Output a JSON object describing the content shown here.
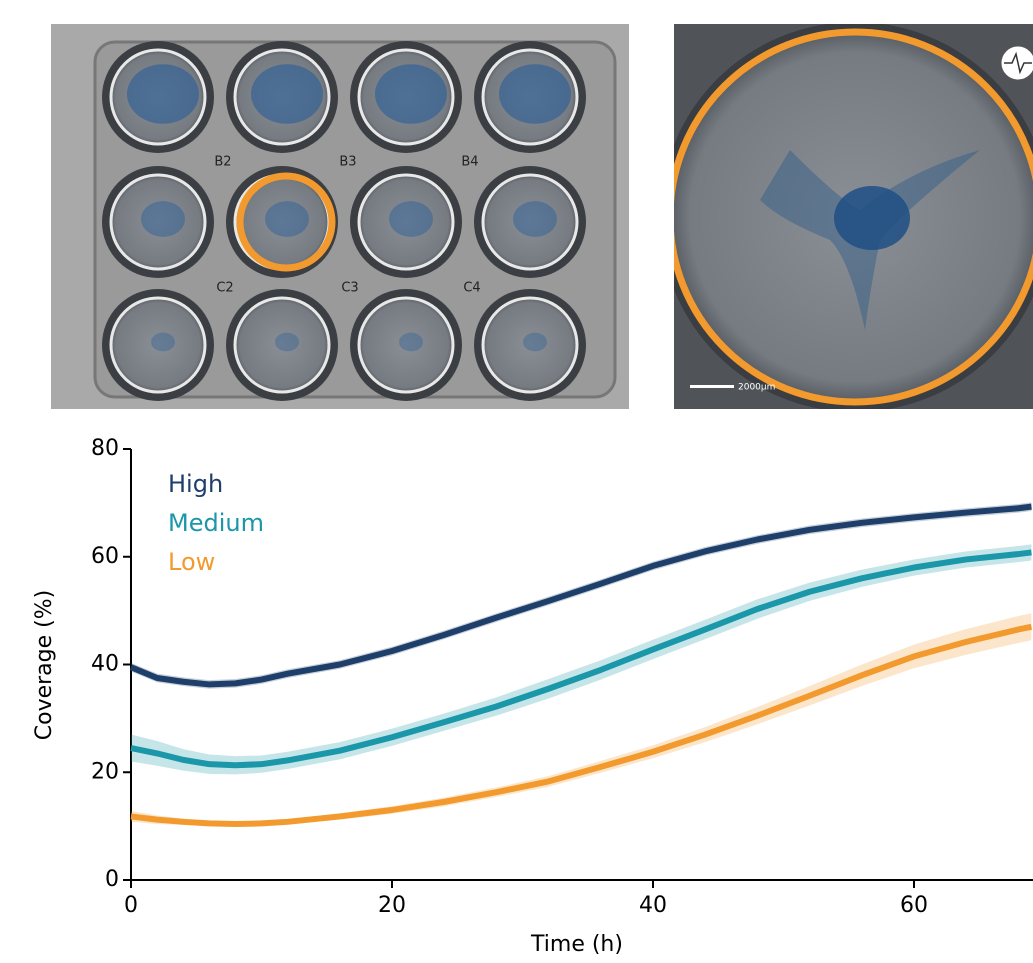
{
  "chart_data": {
    "type": "line",
    "x_label": "Time (h)",
    "y_label": "Coverage (%)",
    "x": [
      0,
      2,
      4,
      6,
      8,
      10,
      12,
      16,
      20,
      24,
      28,
      32,
      36,
      40,
      44,
      48,
      52,
      56,
      60,
      64,
      68,
      69
    ],
    "series": [
      {
        "name": "High",
        "color": "#1f3f6b",
        "values": [
          39.5,
          37.5,
          36.8,
          36.3,
          36.5,
          37.2,
          38.3,
          40,
          42.5,
          45.5,
          48.7,
          51.8,
          55,
          58.3,
          61,
          63.2,
          65,
          66.3,
          67.3,
          68.2,
          69,
          69.3
        ],
        "error": [
          0.8,
          0.8,
          0.8,
          0.8,
          0.8,
          0.8,
          0.8,
          0.8,
          0.8,
          0.8,
          0.8,
          0.8,
          0.8,
          0.8,
          0.8,
          0.8,
          0.8,
          0.8,
          0.8,
          0.8,
          0.8,
          0.8
        ]
      },
      {
        "name": "Medium",
        "color": "#1a97a8",
        "values": [
          24.5,
          23.5,
          22.3,
          21.5,
          21.3,
          21.5,
          22.2,
          24,
          26.5,
          29.3,
          32.2,
          35.5,
          39,
          42.8,
          46.5,
          50.3,
          53.5,
          56,
          58,
          59.5,
          60.5,
          60.8
        ],
        "error": [
          2.5,
          2.3,
          2,
          1.8,
          1.7,
          1.6,
          1.6,
          1.6,
          1.6,
          1.6,
          1.7,
          1.8,
          1.8,
          1.8,
          1.8,
          1.8,
          1.7,
          1.6,
          1.5,
          1.5,
          1.5,
          1.5
        ]
      },
      {
        "name": "Low",
        "color": "#f39a2e",
        "values": [
          11.8,
          11.2,
          10.8,
          10.5,
          10.4,
          10.5,
          10.8,
          11.8,
          13,
          14.5,
          16.3,
          18.3,
          21,
          23.8,
          27,
          30.5,
          34.2,
          38,
          41.5,
          44.2,
          46.5,
          47
        ],
        "error": [
          1,
          0.8,
          0.6,
          0.5,
          0.5,
          0.5,
          0.5,
          0.6,
          0.7,
          0.8,
          0.9,
          1,
          1.1,
          1.2,
          1.4,
          1.6,
          1.8,
          2,
          2.2,
          2.4,
          2.5,
          2.5
        ]
      }
    ],
    "xlim": [
      0,
      69
    ],
    "ylim": [
      0,
      80
    ],
    "xticks": [
      0,
      20,
      40,
      60
    ],
    "yticks": [
      0,
      20,
      40,
      60,
      80
    ],
    "grid": false,
    "legend": "top-left"
  },
  "images": {
    "well_labels": [
      "B2",
      "B3",
      "B4",
      "C2",
      "C3",
      "C4"
    ],
    "scale_bar": "2000μm"
  }
}
